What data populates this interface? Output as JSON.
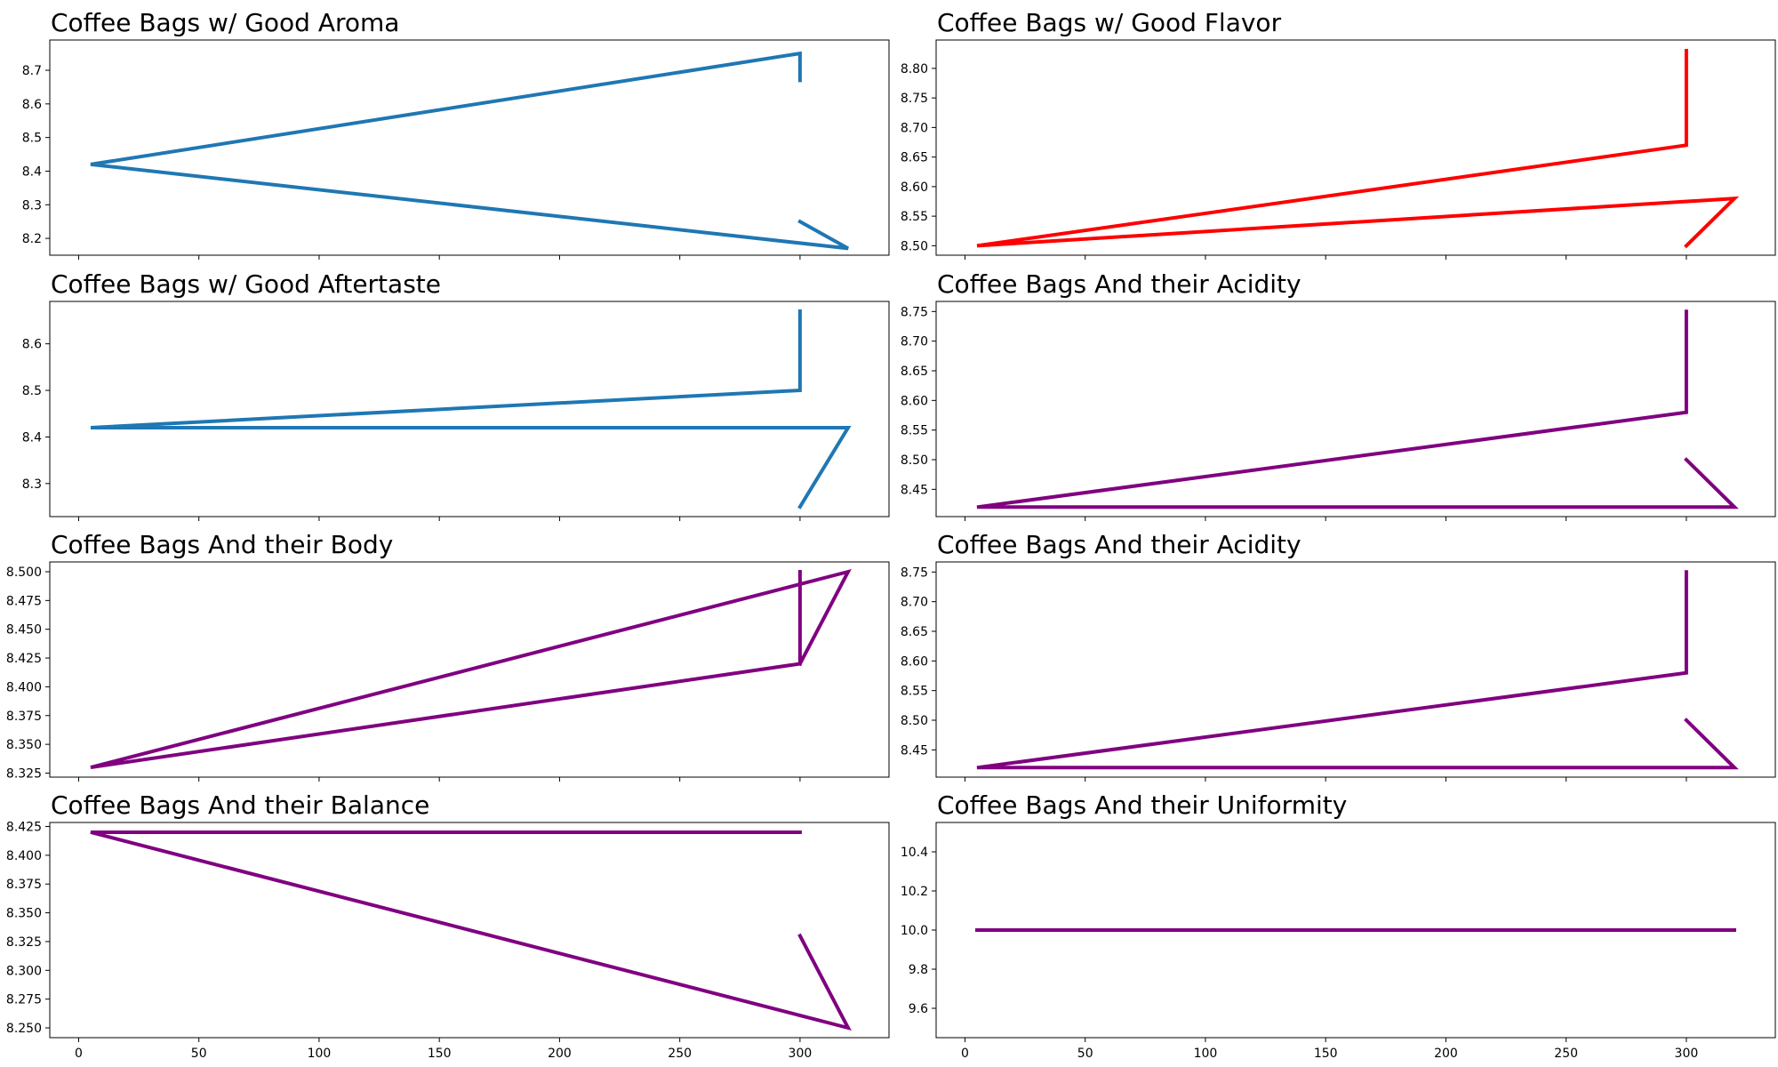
{
  "chart_data": [
    {
      "type": "line",
      "title": "Coffee Bags w/ Good Aroma",
      "color": "#1f77b4",
      "x": [
        300,
        300,
        5,
        320,
        300
      ],
      "y": [
        8.67,
        8.75,
        8.42,
        8.17,
        8.25
      ],
      "xlim": [
        -12,
        337
      ],
      "ylim": [
        8.15,
        8.79
      ],
      "yticks": [
        8.2,
        8.3,
        8.4,
        8.5,
        8.6,
        8.7
      ],
      "ytick_labels": [
        "8.2",
        "8.3",
        "8.4",
        "8.5",
        "8.6",
        "8.7"
      ],
      "xticks": [
        0,
        50,
        100,
        150,
        200,
        250,
        300
      ],
      "xtick_labels": []
    },
    {
      "type": "line",
      "title": "Coffee Bags w/ Good Flavor",
      "color": "#ff0000",
      "x": [
        300,
        300,
        5,
        320,
        300
      ],
      "y": [
        8.83,
        8.67,
        8.5,
        8.58,
        8.5
      ],
      "xlim": [
        -12,
        337
      ],
      "ylim": [
        8.484,
        8.848
      ],
      "yticks": [
        8.5,
        8.55,
        8.6,
        8.65,
        8.7,
        8.75,
        8.8
      ],
      "ytick_labels": [
        "8.50",
        "8.55",
        "8.60",
        "8.65",
        "8.70",
        "8.75",
        "8.80"
      ],
      "xticks": [
        0,
        50,
        100,
        150,
        200,
        250,
        300
      ],
      "xtick_labels": []
    },
    {
      "type": "line",
      "title": "Coffee Bags w/ Good Aftertaste",
      "color": "#1f77b4",
      "x": [
        300,
        300,
        5,
        320,
        300
      ],
      "y": [
        8.67,
        8.5,
        8.42,
        8.42,
        8.25
      ],
      "xlim": [
        -12,
        337
      ],
      "ylim": [
        8.229,
        8.691
      ],
      "yticks": [
        8.3,
        8.4,
        8.5,
        8.6
      ],
      "ytick_labels": [
        "8.3",
        "8.4",
        "8.5",
        "8.6"
      ],
      "xticks": [
        0,
        50,
        100,
        150,
        200,
        250,
        300
      ],
      "xtick_labels": []
    },
    {
      "type": "line",
      "title": "Coffee Bags And their Acidity",
      "color": "#800080",
      "x": [
        300,
        300,
        5,
        320,
        300
      ],
      "y": [
        8.75,
        8.58,
        8.42,
        8.42,
        8.5
      ],
      "xlim": [
        -12,
        337
      ],
      "ylim": [
        8.404,
        8.767
      ],
      "yticks": [
        8.45,
        8.5,
        8.55,
        8.6,
        8.65,
        8.7,
        8.75
      ],
      "ytick_labels": [
        "8.45",
        "8.50",
        "8.55",
        "8.60",
        "8.65",
        "8.70",
        "8.75"
      ],
      "xticks": [
        0,
        50,
        100,
        150,
        200,
        250,
        300
      ],
      "xtick_labels": []
    },
    {
      "type": "line",
      "title": "Coffee Bags And their Body",
      "color": "#800080",
      "x": [
        300,
        300,
        5,
        320,
        300
      ],
      "y": [
        8.5,
        8.42,
        8.33,
        8.5,
        8.42
      ],
      "xlim": [
        -12,
        337
      ],
      "ylim": [
        8.3215,
        8.5085
      ],
      "yticks": [
        8.325,
        8.35,
        8.375,
        8.4,
        8.425,
        8.45,
        8.475,
        8.5
      ],
      "ytick_labels": [
        "8.325",
        "8.350",
        "8.375",
        "8.400",
        "8.425",
        "8.450",
        "8.475",
        "8.500"
      ],
      "xticks": [
        0,
        50,
        100,
        150,
        200,
        250,
        300
      ],
      "xtick_labels": []
    },
    {
      "type": "line",
      "title": "Coffee Bags And their Acidity",
      "color": "#800080",
      "x": [
        300,
        300,
        5,
        320,
        300
      ],
      "y": [
        8.75,
        8.58,
        8.42,
        8.42,
        8.5
      ],
      "xlim": [
        -12,
        337
      ],
      "ylim": [
        8.404,
        8.767
      ],
      "yticks": [
        8.45,
        8.5,
        8.55,
        8.6,
        8.65,
        8.7,
        8.75
      ],
      "ytick_labels": [
        "8.45",
        "8.50",
        "8.55",
        "8.60",
        "8.65",
        "8.70",
        "8.75"
      ],
      "xticks": [
        0,
        50,
        100,
        150,
        200,
        250,
        300
      ],
      "xtick_labels": []
    },
    {
      "type": "line",
      "title": "Coffee Bags And their Balance",
      "color": "#800080",
      "x": [
        300,
        5,
        320,
        300
      ],
      "y": [
        8.42,
        8.42,
        8.25,
        8.33
      ],
      "xlim": [
        -12,
        337
      ],
      "ylim": [
        8.2415,
        8.4285
      ],
      "yticks": [
        8.25,
        8.275,
        8.3,
        8.325,
        8.35,
        8.375,
        8.4,
        8.425
      ],
      "ytick_labels": [
        "8.250",
        "8.275",
        "8.300",
        "8.325",
        "8.350",
        "8.375",
        "8.400",
        "8.425"
      ],
      "xticks": [
        0,
        50,
        100,
        150,
        200,
        250,
        300
      ],
      "xtick_labels": [
        "0",
        "50",
        "100",
        "150",
        "200",
        "250",
        "300"
      ]
    },
    {
      "type": "line",
      "title": "Coffee Bags And their Uniformity",
      "color": "#800080",
      "x": [
        5,
        320
      ],
      "y": [
        10.0,
        10.0
      ],
      "xlim": [
        -12,
        337
      ],
      "ylim": [
        9.45,
        10.55
      ],
      "yticks": [
        9.6,
        9.8,
        10.0,
        10.2,
        10.4
      ],
      "ytick_labels": [
        "9.6",
        "9.8",
        "10.0",
        "10.2",
        "10.4"
      ],
      "xticks": [
        0,
        50,
        100,
        150,
        200,
        250,
        300
      ],
      "xtick_labels": [
        "0",
        "50",
        "100",
        "150",
        "200",
        "250",
        "300"
      ]
    }
  ]
}
